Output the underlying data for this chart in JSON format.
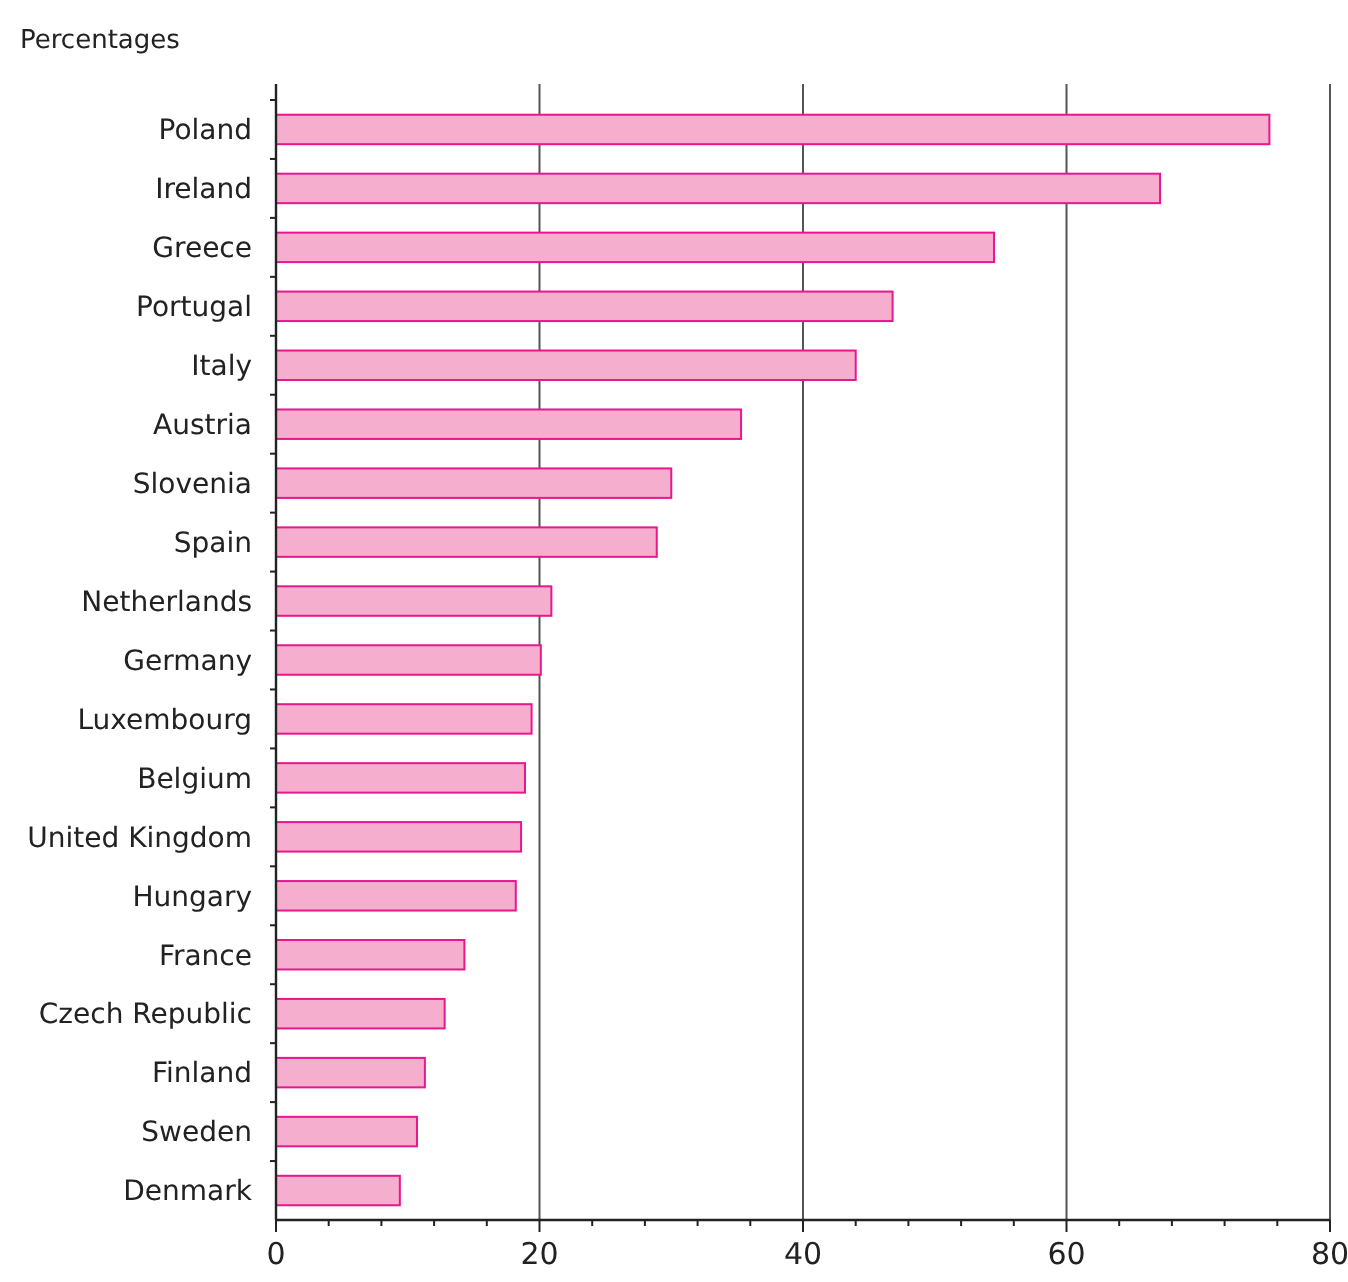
{
  "chart_data": {
    "type": "bar",
    "orientation": "horizontal",
    "title": "Percentages",
    "categories": [
      "Poland",
      "Ireland",
      "Greece",
      "Portugal",
      "Italy",
      "Austria",
      "Slovenia",
      "Spain",
      "Netherlands",
      "Germany",
      "Luxembourg",
      "Belgium",
      "United Kingdom",
      "Hungary",
      "France",
      "Czech Republic",
      "Finland",
      "Sweden",
      "Denmark"
    ],
    "values": [
      75.4,
      67.1,
      54.5,
      46.8,
      44.0,
      35.3,
      30.0,
      28.9,
      20.9,
      20.1,
      19.4,
      18.9,
      18.6,
      18.2,
      14.3,
      12.8,
      11.3,
      10.7,
      9.4
    ],
    "color": "#f5aecd",
    "xlim": [
      0,
      80
    ],
    "xticks": [
      0,
      {
        "value": 4,
        "label": null
      },
      {
        "value": 8,
        "label": null
      },
      {
        "value": 12,
        "label": null
      },
      {
        "value": 16,
        "label": null
      },
      20,
      {
        "value": 24,
        "label": null
      },
      {
        "value": 28,
        "label": null
      },
      {
        "value": 32,
        "label": null
      },
      {
        "value": 36,
        "label": null
      },
      40,
      {
        "value": 44,
        "label": null
      },
      {
        "value": 48,
        "label": null
      },
      {
        "value": 52,
        "label": null
      },
      {
        "value": 56,
        "label": null
      },
      60,
      {
        "value": 64,
        "label": null
      },
      {
        "value": 68,
        "label": null
      },
      {
        "value": 72,
        "label": null
      },
      {
        "value": 76,
        "label": null
      },
      80
    ],
    "grid": "x"
  }
}
